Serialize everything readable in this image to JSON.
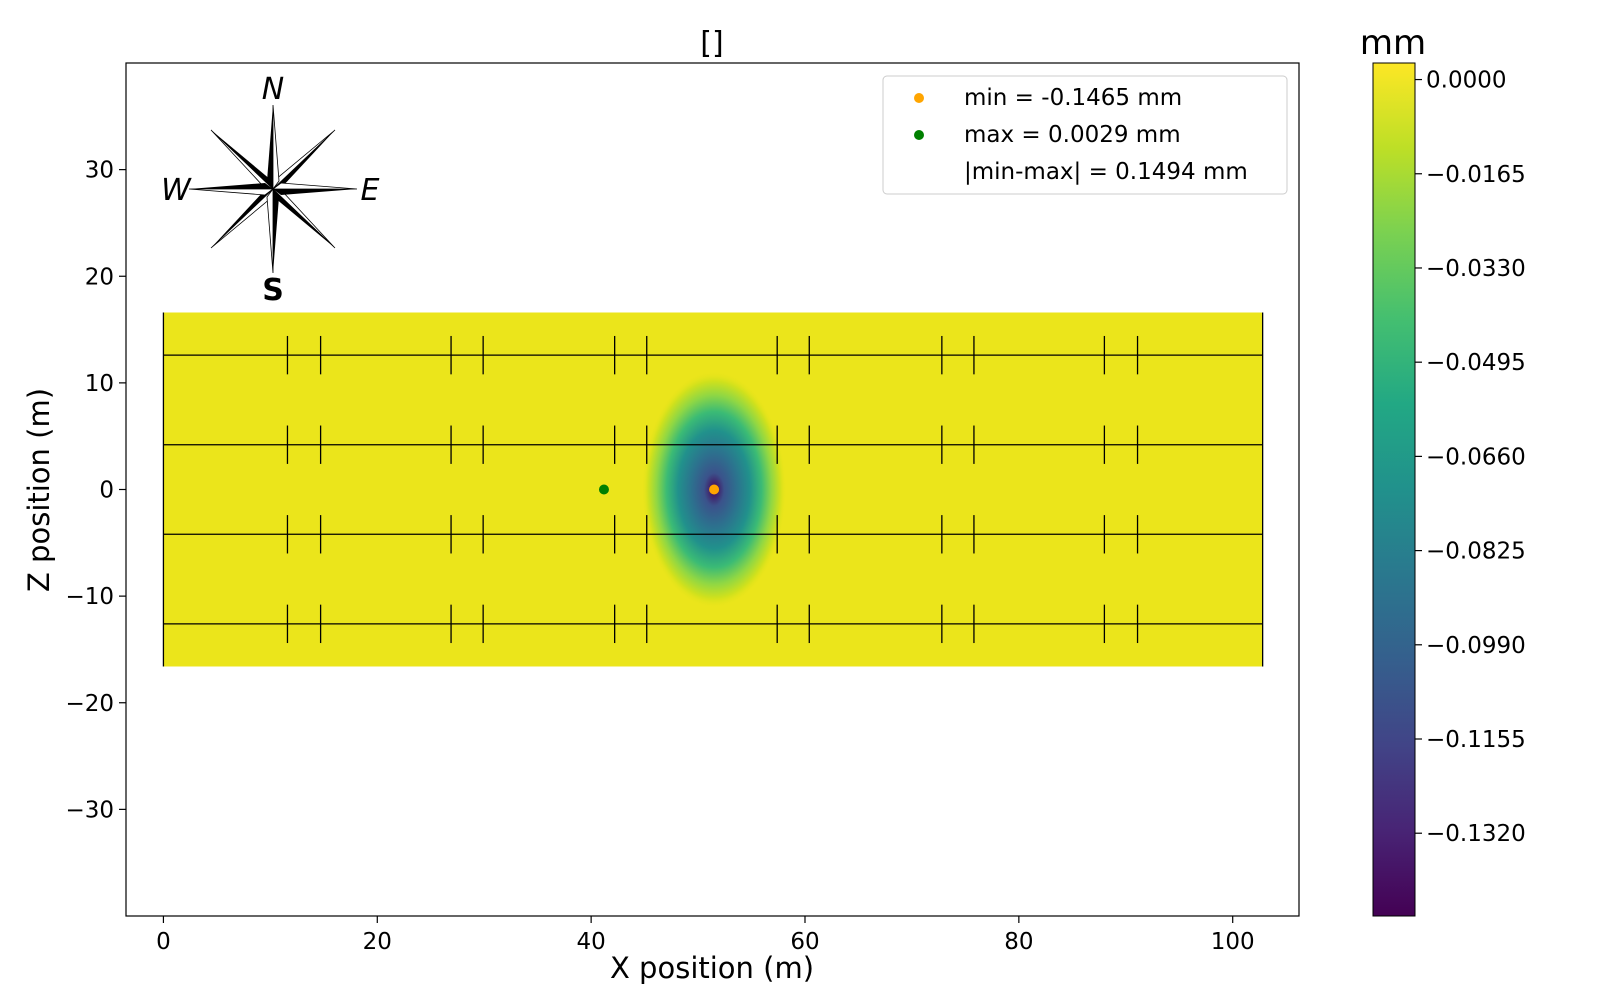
{
  "chart_data": {
    "type": "heatmap",
    "title": "[]",
    "xlabel": "X position (m)",
    "ylabel": "Z position (m)",
    "xlim": [
      -3.5,
      106.2
    ],
    "ylim": [
      -40,
      40
    ],
    "x_ticks": [
      0,
      20,
      40,
      60,
      80,
      100
    ],
    "y_ticks": [
      -30,
      -20,
      -10,
      0,
      10,
      20,
      30
    ],
    "x_tick_labels": [
      "0",
      "20",
      "40",
      "60",
      "80",
      "100"
    ],
    "y_tick_labels": [
      "−30",
      "−20",
      "−10",
      "0",
      "10",
      "20",
      "30"
    ],
    "grid": false,
    "legend_placement": "top-right",
    "field_extent": {
      "x": [
        0,
        102.8
      ],
      "z": [
        -16.6,
        16.6
      ]
    },
    "deflection_field": {
      "baseline": -0.004,
      "peak_value": -0.1465,
      "peak_location": {
        "x": 51.5,
        "z": 0
      },
      "max_value": 0.0029,
      "max_location": {
        "x": 41.2,
        "z": 0
      }
    },
    "girder_lines_z": [
      12.6,
      4.2,
      -4.2,
      -12.6
    ],
    "diaphragm_pairs_x": [
      [
        11.6,
        14.7
      ],
      [
        26.9,
        29.9
      ],
      [
        42.2,
        45.2
      ],
      [
        57.4,
        60.4
      ],
      [
        72.8,
        75.8
      ],
      [
        88.0,
        91.1
      ]
    ],
    "diaphragm_half_height": 1.8,
    "markers": [
      {
        "label": "min = -0.1465 mm",
        "x": 51.5,
        "z": 0,
        "color": "#ffa500"
      },
      {
        "label": "max = 0.0029 mm",
        "x": 41.2,
        "z": 0,
        "color": "#008000"
      },
      {
        "label": "|min-max| = 0.1494 mm",
        "color": "none"
      }
    ],
    "colorbar": {
      "unit": "mm",
      "colormap": "viridis",
      "range": [
        -0.1465,
        0.0029
      ],
      "ticks": [
        0.0,
        -0.0165,
        -0.033,
        -0.0495,
        -0.066,
        -0.0825,
        -0.099,
        -0.1155,
        -0.132
      ],
      "tick_labels": [
        "0.0000",
        "−0.0165",
        "−0.0330",
        "−0.0495",
        "−0.0660",
        "−0.0825",
        "−0.0990",
        "−0.1155",
        "−0.1320"
      ]
    },
    "compass": {
      "north": "N",
      "south": "S",
      "east": "E",
      "west": "W"
    }
  }
}
